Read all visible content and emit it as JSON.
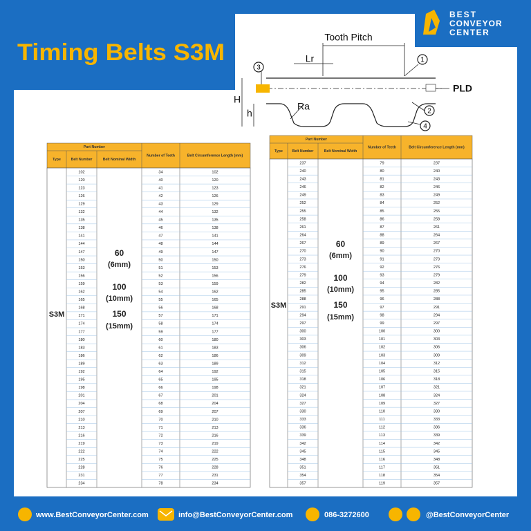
{
  "header": {
    "title": "Timing Belts S3M",
    "logo": [
      "BEST",
      "CONVEYOR",
      "CENTER"
    ]
  },
  "diagram": {
    "tooth_pitch": "Tooth Pitch",
    "lr": "Lr",
    "pld": "PLD",
    "H": "H",
    "h": "h",
    "ra": "Ra",
    "n1": "1",
    "n2": "2",
    "n3": "3",
    "n4": "4"
  },
  "tables": [
    {
      "group": "Part Number",
      "type_head": "Type",
      "belt_head": "Belt Number",
      "width_head": "Belt Nominal Width",
      "teeth_head": "Number of Teeth",
      "length_head": "Belt Circumference Length (mm)",
      "type": "S3M",
      "widths": [
        "60",
        "(6mm)",
        "100",
        "(10mm)",
        "150",
        "(15mm)"
      ],
      "rows": [
        [
          102,
          34,
          102
        ],
        [
          120,
          40,
          120
        ],
        [
          123,
          41,
          123
        ],
        [
          126,
          42,
          126
        ],
        [
          129,
          43,
          129
        ],
        [
          132,
          44,
          132
        ],
        [
          135,
          45,
          135
        ],
        [
          138,
          46,
          138
        ],
        [
          141,
          47,
          141
        ],
        [
          144,
          48,
          144
        ],
        [
          147,
          49,
          147
        ],
        [
          150,
          50,
          150
        ],
        [
          153,
          51,
          153
        ],
        [
          156,
          52,
          156
        ],
        [
          159,
          53,
          159
        ],
        [
          162,
          54,
          162
        ],
        [
          165,
          55,
          165
        ],
        [
          168,
          56,
          168
        ],
        [
          171,
          57,
          171
        ],
        [
          174,
          58,
          174
        ],
        [
          177,
          59,
          177
        ],
        [
          180,
          60,
          180
        ],
        [
          183,
          61,
          183
        ],
        [
          186,
          62,
          186
        ],
        [
          189,
          63,
          189
        ],
        [
          192,
          64,
          192
        ],
        [
          195,
          65,
          195
        ],
        [
          198,
          66,
          198
        ],
        [
          201,
          67,
          201
        ],
        [
          204,
          68,
          204
        ],
        [
          207,
          69,
          207
        ],
        [
          210,
          70,
          210
        ],
        [
          213,
          71,
          213
        ],
        [
          216,
          72,
          216
        ],
        [
          219,
          73,
          219
        ],
        [
          222,
          74,
          222
        ],
        [
          225,
          75,
          225
        ],
        [
          228,
          76,
          228
        ],
        [
          231,
          77,
          231
        ],
        [
          234,
          78,
          234
        ]
      ]
    },
    {
      "group": "Part Number",
      "type_head": "Type",
      "belt_head": "Belt Number",
      "width_head": "Belt Nominal Width",
      "teeth_head": "Number of Teeth",
      "length_head": "Belt Circumference Length (mm)",
      "type": "S3M",
      "widths": [
        "60",
        "(6mm)",
        "100",
        "(10mm)",
        "150",
        "(15mm)"
      ],
      "rows": [
        [
          237,
          79,
          237
        ],
        [
          240,
          80,
          240
        ],
        [
          243,
          81,
          243
        ],
        [
          246,
          82,
          246
        ],
        [
          249,
          83,
          249
        ],
        [
          252,
          84,
          252
        ],
        [
          255,
          85,
          255
        ],
        [
          258,
          86,
          258
        ],
        [
          261,
          87,
          261
        ],
        [
          264,
          88,
          264
        ],
        [
          267,
          89,
          267
        ],
        [
          270,
          90,
          270
        ],
        [
          273,
          91,
          273
        ],
        [
          276,
          92,
          276
        ],
        [
          279,
          93,
          279
        ],
        [
          282,
          94,
          282
        ],
        [
          285,
          95,
          285
        ],
        [
          288,
          96,
          288
        ],
        [
          291,
          97,
          291
        ],
        [
          294,
          98,
          294
        ],
        [
          297,
          99,
          297
        ],
        [
          300,
          100,
          300
        ],
        [
          303,
          101,
          303
        ],
        [
          306,
          102,
          306
        ],
        [
          309,
          103,
          309
        ],
        [
          312,
          104,
          312
        ],
        [
          315,
          105,
          315
        ],
        [
          318,
          106,
          318
        ],
        [
          321,
          107,
          321
        ],
        [
          324,
          108,
          324
        ],
        [
          327,
          109,
          327
        ],
        [
          330,
          110,
          330
        ],
        [
          333,
          111,
          333
        ],
        [
          336,
          112,
          336
        ],
        [
          339,
          113,
          339
        ],
        [
          342,
          114,
          342
        ],
        [
          345,
          115,
          345
        ],
        [
          348,
          116,
          348
        ],
        [
          351,
          117,
          351
        ],
        [
          354,
          118,
          354
        ],
        [
          357,
          119,
          357
        ]
      ]
    }
  ],
  "footer": {
    "web": "www.BestConveyorCenter.com",
    "mail": "info@BestConveyorCenter.com",
    "phone": "086-3272600",
    "social": "@BestConveyorCenter"
  }
}
